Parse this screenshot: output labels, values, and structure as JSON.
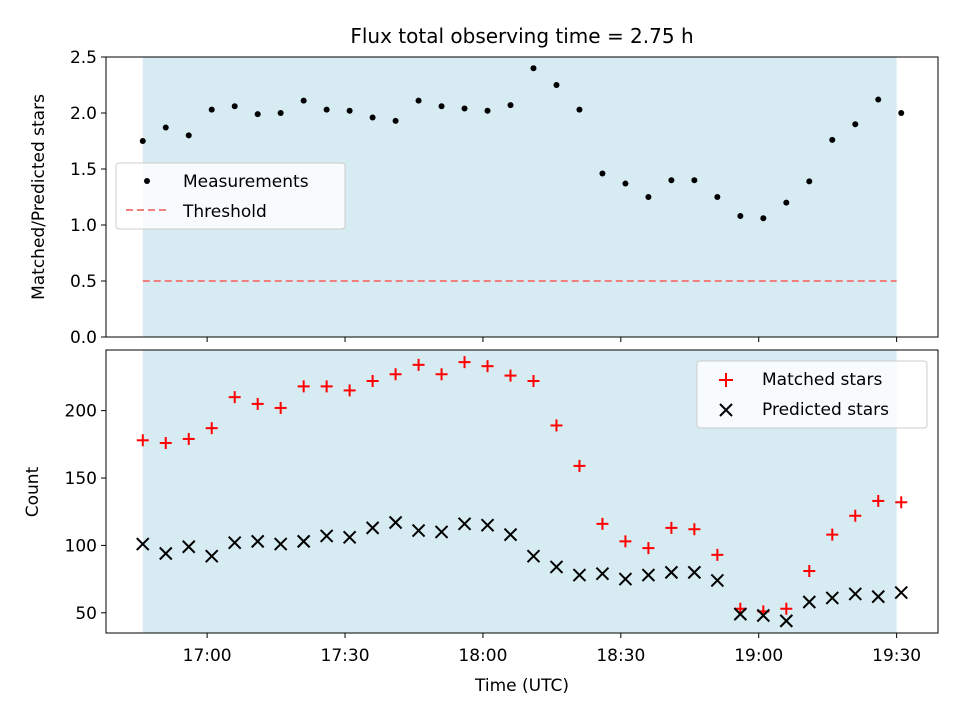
{
  "title": "Flux total observing time = 2.75 h",
  "colors": {
    "band": "#add8e6",
    "measurement": "#000000",
    "threshold": "#f08080",
    "matched": "#ff0000",
    "predicted": "#000000"
  },
  "chart_data": [
    {
      "type": "scatter",
      "ylabel": "Matched/Predicted stars",
      "ylim": [
        0,
        2.5
      ],
      "yticks": [
        0.0,
        0.5,
        1.0,
        1.5,
        2.0,
        2.5
      ],
      "ytick_labels": [
        "0.0",
        "0.5",
        "1.0",
        "1.5",
        "2.0",
        "2.5"
      ],
      "x_shared": true,
      "shaded_span": [
        "16:46",
        "19:30"
      ],
      "legend": {
        "placement": "center-left",
        "entries": [
          "Measurements",
          "Threshold"
        ]
      },
      "threshold": {
        "name": "Threshold",
        "value": 0.5,
        "style": "dashed"
      },
      "series": [
        {
          "name": "Measurements",
          "marker": "dot",
          "x": [
            "16:46",
            "16:51",
            "16:56",
            "17:01",
            "17:06",
            "17:11",
            "17:16",
            "17:21",
            "17:26",
            "17:31",
            "17:36",
            "17:41",
            "17:46",
            "17:51",
            "17:56",
            "18:01",
            "18:06",
            "18:11",
            "18:16",
            "18:21",
            "18:26",
            "18:31",
            "18:36",
            "18:41",
            "18:46",
            "18:51",
            "18:56",
            "19:01",
            "19:06",
            "19:11",
            "19:16",
            "19:21",
            "19:26",
            "19:31"
          ],
          "y": [
            1.75,
            1.87,
            1.8,
            2.03,
            2.06,
            1.99,
            2.0,
            2.11,
            2.03,
            2.02,
            1.96,
            1.93,
            2.11,
            2.06,
            2.04,
            2.02,
            2.07,
            2.4,
            2.25,
            2.03,
            1.46,
            1.37,
            1.25,
            1.4,
            1.4,
            1.25,
            1.08,
            1.06,
            1.2,
            1.39,
            1.76,
            1.9,
            2.12,
            2.0
          ]
        }
      ]
    },
    {
      "type": "scatter",
      "xlabel": "Time (UTC)",
      "ylabel": "Count",
      "ylim": [
        35,
        245
      ],
      "yticks": [
        50,
        100,
        150,
        200
      ],
      "ytick_labels": [
        "50",
        "100",
        "150",
        "200"
      ],
      "xlim": [
        "16:38",
        "19:39"
      ],
      "xticks": [
        "17:00",
        "17:30",
        "18:00",
        "18:30",
        "19:00",
        "19:30"
      ],
      "shaded_span": [
        "16:46",
        "19:30"
      ],
      "legend": {
        "placement": "top-right",
        "entries": [
          "Matched stars",
          "Predicted stars"
        ]
      },
      "series": [
        {
          "name": "Matched stars",
          "marker": "+",
          "x": [
            "16:46",
            "16:51",
            "16:56",
            "17:01",
            "17:06",
            "17:11",
            "17:16",
            "17:21",
            "17:26",
            "17:31",
            "17:36",
            "17:41",
            "17:46",
            "17:51",
            "17:56",
            "18:01",
            "18:06",
            "18:11",
            "18:16",
            "18:21",
            "18:26",
            "18:31",
            "18:36",
            "18:41",
            "18:46",
            "18:51",
            "18:56",
            "19:01",
            "19:06",
            "19:11",
            "19:16",
            "19:21",
            "19:26",
            "19:31"
          ],
          "y": [
            178,
            176,
            179,
            187,
            210,
            205,
            202,
            218,
            218,
            215,
            222,
            227,
            234,
            227,
            236,
            233,
            226,
            222,
            189,
            159,
            116,
            103,
            98,
            113,
            112,
            93,
            53,
            51,
            53,
            81,
            108,
            122,
            133,
            132
          ]
        },
        {
          "name": "Predicted stars",
          "marker": "x",
          "x": [
            "16:46",
            "16:51",
            "16:56",
            "17:01",
            "17:06",
            "17:11",
            "17:16",
            "17:21",
            "17:26",
            "17:31",
            "17:36",
            "17:41",
            "17:46",
            "17:51",
            "17:56",
            "18:01",
            "18:06",
            "18:11",
            "18:16",
            "18:21",
            "18:26",
            "18:31",
            "18:36",
            "18:41",
            "18:46",
            "18:51",
            "18:56",
            "19:01",
            "19:06",
            "19:11",
            "19:16",
            "19:21",
            "19:26",
            "19:31"
          ],
          "y": [
            101,
            94,
            99,
            92,
            102,
            103,
            101,
            103,
            107,
            106,
            113,
            117,
            111,
            110,
            116,
            115,
            108,
            92,
            84,
            78,
            79,
            75,
            78,
            80,
            80,
            74,
            49,
            48,
            44,
            58,
            61,
            64,
            62,
            65
          ]
        }
      ]
    }
  ]
}
